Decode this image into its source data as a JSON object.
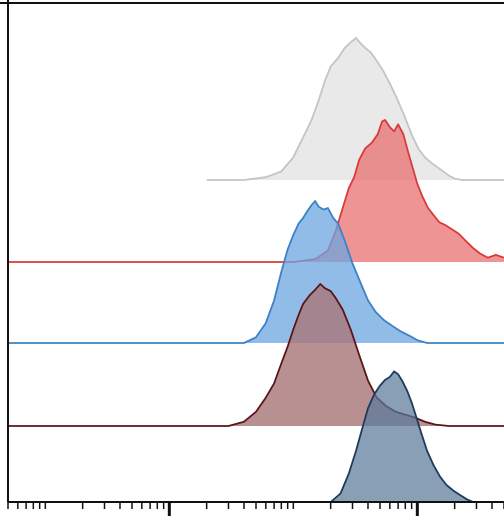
{
  "chart_data": {
    "type": "area",
    "title": "",
    "xlabel": "",
    "ylabel": "",
    "x_scale": "log",
    "xlim": [
      0.5,
      5000
    ],
    "major_ticks": [
      10,
      1000
    ],
    "grid": false,
    "legend": "none",
    "series": [
      {
        "color": "#cfcfcf",
        "stroke": "#c4c4c4",
        "opacity": 0.45,
        "values": [
          [
            20,
            0
          ],
          [
            40,
            0
          ],
          [
            60,
            0.02
          ],
          [
            80,
            0.06
          ],
          [
            100,
            0.16
          ],
          [
            120,
            0.3
          ],
          [
            140,
            0.42
          ],
          [
            160,
            0.56
          ],
          [
            180,
            0.7
          ],
          [
            200,
            0.8
          ],
          [
            230,
            0.86
          ],
          [
            260,
            0.93
          ],
          [
            290,
            0.97
          ],
          [
            320,
            1.0
          ],
          [
            350,
            0.96
          ],
          [
            380,
            0.93
          ],
          [
            420,
            0.9
          ],
          [
            470,
            0.84
          ],
          [
            530,
            0.77
          ],
          [
            600,
            0.68
          ],
          [
            680,
            0.58
          ],
          [
            780,
            0.46
          ],
          [
            900,
            0.32
          ],
          [
            1020,
            0.22
          ],
          [
            1150,
            0.16
          ],
          [
            1300,
            0.12
          ],
          [
            1450,
            0.09
          ],
          [
            1620,
            0.06
          ],
          [
            1800,
            0.03
          ],
          [
            2000,
            0.01
          ],
          [
            2300,
            0
          ],
          [
            5000,
            0
          ]
        ]
      },
      {
        "color": "#e96b6c",
        "stroke": "#d93a3a",
        "opacity": 0.72,
        "values": [
          [
            0.5,
            0
          ],
          [
            100,
            0
          ],
          [
            150,
            0.02
          ],
          [
            190,
            0.08
          ],
          [
            220,
            0.22
          ],
          [
            250,
            0.38
          ],
          [
            280,
            0.52
          ],
          [
            310,
            0.6
          ],
          [
            340,
            0.72
          ],
          [
            380,
            0.8
          ],
          [
            430,
            0.84
          ],
          [
            480,
            0.9
          ],
          [
            520,
            0.99
          ],
          [
            550,
            1.0
          ],
          [
            600,
            0.95
          ],
          [
            650,
            0.92
          ],
          [
            700,
            0.97
          ],
          [
            770,
            0.9
          ],
          [
            840,
            0.78
          ],
          [
            920,
            0.66
          ],
          [
            1000,
            0.55
          ],
          [
            1100,
            0.46
          ],
          [
            1220,
            0.38
          ],
          [
            1350,
            0.33
          ],
          [
            1500,
            0.28
          ],
          [
            1680,
            0.26
          ],
          [
            1900,
            0.23
          ],
          [
            2150,
            0.2
          ],
          [
            2450,
            0.15
          ],
          [
            2800,
            0.1
          ],
          [
            3200,
            0.06
          ],
          [
            3700,
            0.03
          ],
          [
            4300,
            0.05
          ],
          [
            5000,
            0.03
          ]
        ]
      },
      {
        "color": "#6ea6e0",
        "stroke": "#3b82c8",
        "opacity": 0.75,
        "values": [
          [
            0.5,
            0
          ],
          [
            40,
            0
          ],
          [
            50,
            0.04
          ],
          [
            60,
            0.14
          ],
          [
            70,
            0.3
          ],
          [
            80,
            0.5
          ],
          [
            90,
            0.66
          ],
          [
            100,
            0.76
          ],
          [
            110,
            0.84
          ],
          [
            120,
            0.88
          ],
          [
            130,
            0.93
          ],
          [
            140,
            0.97
          ],
          [
            150,
            1.0
          ],
          [
            160,
            0.96
          ],
          [
            175,
            0.94
          ],
          [
            190,
            0.95
          ],
          [
            210,
            0.88
          ],
          [
            230,
            0.84
          ],
          [
            260,
            0.72
          ],
          [
            300,
            0.56
          ],
          [
            350,
            0.42
          ],
          [
            400,
            0.3
          ],
          [
            460,
            0.22
          ],
          [
            540,
            0.16
          ],
          [
            630,
            0.12
          ],
          [
            740,
            0.08
          ],
          [
            870,
            0.05
          ],
          [
            1000,
            0.02
          ],
          [
            1200,
            0
          ],
          [
            5000,
            0
          ]
        ]
      },
      {
        "color": "#a8777a",
        "stroke": "#5a1518",
        "opacity": 0.82,
        "values": [
          [
            0.5,
            0
          ],
          [
            30,
            0
          ],
          [
            40,
            0.03
          ],
          [
            50,
            0.1
          ],
          [
            60,
            0.2
          ],
          [
            70,
            0.3
          ],
          [
            80,
            0.44
          ],
          [
            90,
            0.56
          ],
          [
            100,
            0.68
          ],
          [
            110,
            0.78
          ],
          [
            120,
            0.86
          ],
          [
            135,
            0.92
          ],
          [
            150,
            0.96
          ],
          [
            165,
            1.0
          ],
          [
            180,
            0.97
          ],
          [
            200,
            0.95
          ],
          [
            220,
            0.9
          ],
          [
            250,
            0.82
          ],
          [
            290,
            0.68
          ],
          [
            340,
            0.5
          ],
          [
            400,
            0.32
          ],
          [
            470,
            0.2
          ],
          [
            560,
            0.14
          ],
          [
            670,
            0.1
          ],
          [
            800,
            0.08
          ],
          [
            950,
            0.06
          ],
          [
            1150,
            0.03
          ],
          [
            1400,
            0.01
          ],
          [
            1800,
            0
          ],
          [
            5000,
            0
          ]
        ]
      },
      {
        "color": "#5a7a99",
        "stroke": "#1e3a5c",
        "opacity": 0.72,
        "values": [
          [
            0.5,
            0
          ],
          [
            200,
            0
          ],
          [
            240,
            0.06
          ],
          [
            280,
            0.2
          ],
          [
            320,
            0.36
          ],
          [
            360,
            0.52
          ],
          [
            400,
            0.66
          ],
          [
            450,
            0.76
          ],
          [
            500,
            0.82
          ],
          [
            550,
            0.86
          ],
          [
            600,
            0.88
          ],
          [
            650,
            0.92
          ],
          [
            700,
            0.9
          ],
          [
            760,
            0.85
          ],
          [
            830,
            0.78
          ],
          [
            900,
            0.7
          ],
          [
            980,
            0.6
          ],
          [
            1080,
            0.48
          ],
          [
            1200,
            0.36
          ],
          [
            1350,
            0.26
          ],
          [
            1520,
            0.18
          ],
          [
            1720,
            0.12
          ],
          [
            1950,
            0.08
          ],
          [
            2200,
            0.05
          ],
          [
            2500,
            0.02
          ],
          [
            2800,
            0
          ],
          [
            5000,
            0
          ]
        ]
      }
    ]
  }
}
